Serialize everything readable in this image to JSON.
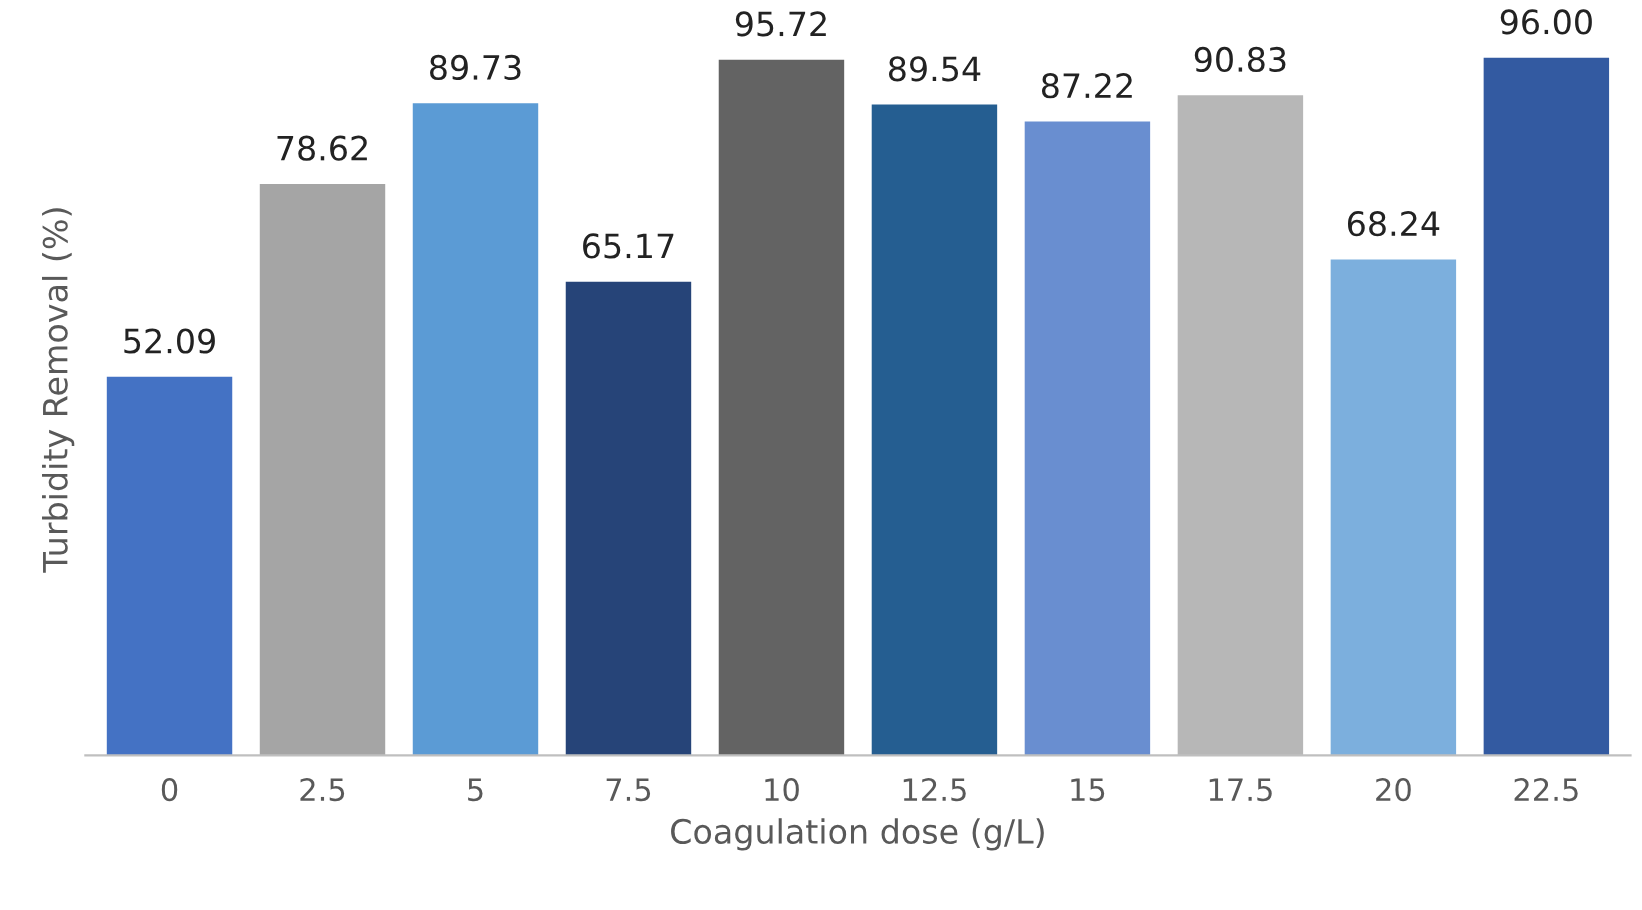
{
  "chart_data": {
    "type": "bar",
    "xlabel": "Coagulation dose (g/L)",
    "ylabel": "Turbidity Removal (%)",
    "categories": [
      "0",
      "2.5",
      "5",
      "7.5",
      "10",
      "12.5",
      "15",
      "17.5",
      "20",
      "22.5"
    ],
    "values": [
      52.09,
      78.62,
      89.73,
      65.17,
      95.72,
      89.54,
      87.22,
      90.83,
      68.24,
      96.0
    ],
    "value_labels": [
      "52.09",
      "78.62",
      "89.73",
      "65.17",
      "95.72",
      "89.54",
      "87.22",
      "90.83",
      "68.24",
      "96.00"
    ],
    "colors": [
      "#4472c4",
      "#a5a5a5",
      "#5b9bd5",
      "#264478",
      "#636363",
      "#255e91",
      "#698ed0",
      "#b7b7b7",
      "#7cafdd",
      "#335aa1"
    ],
    "grid": false,
    "legend": false
  }
}
